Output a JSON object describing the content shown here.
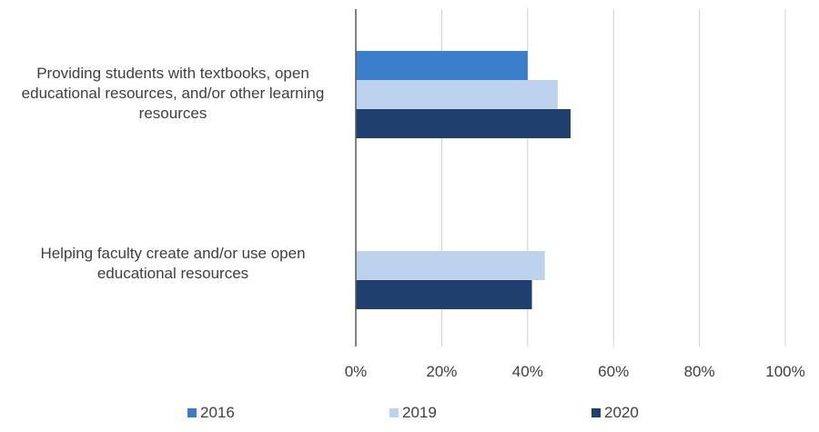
{
  "chart_data": {
    "type": "bar",
    "orientation": "horizontal",
    "categories": [
      "Providing students with textbooks, open educational resources, and/or other learning resources",
      "Helping faculty create and/or use open educational resources"
    ],
    "series": [
      {
        "name": "2016",
        "color": "#3a7dca",
        "values": [
          40,
          null
        ]
      },
      {
        "name": "2019",
        "color": "#bdd2ec",
        "values": [
          47,
          44
        ]
      },
      {
        "name": "2020",
        "color": "#1f3f6e",
        "values": [
          50,
          41
        ]
      }
    ],
    "xlim": [
      0,
      100
    ],
    "ticks": [
      "0%",
      "20%",
      "40%",
      "60%",
      "80%",
      "100%"
    ],
    "grid": true,
    "legend_position": "bottom"
  },
  "labels": {
    "cat0_lines": [
      "Providing students with textbooks, open",
      "educational resources, and/or other learning",
      "resources"
    ],
    "cat1_lines": [
      "Helping faculty create and/or use open",
      "educational resources"
    ]
  }
}
